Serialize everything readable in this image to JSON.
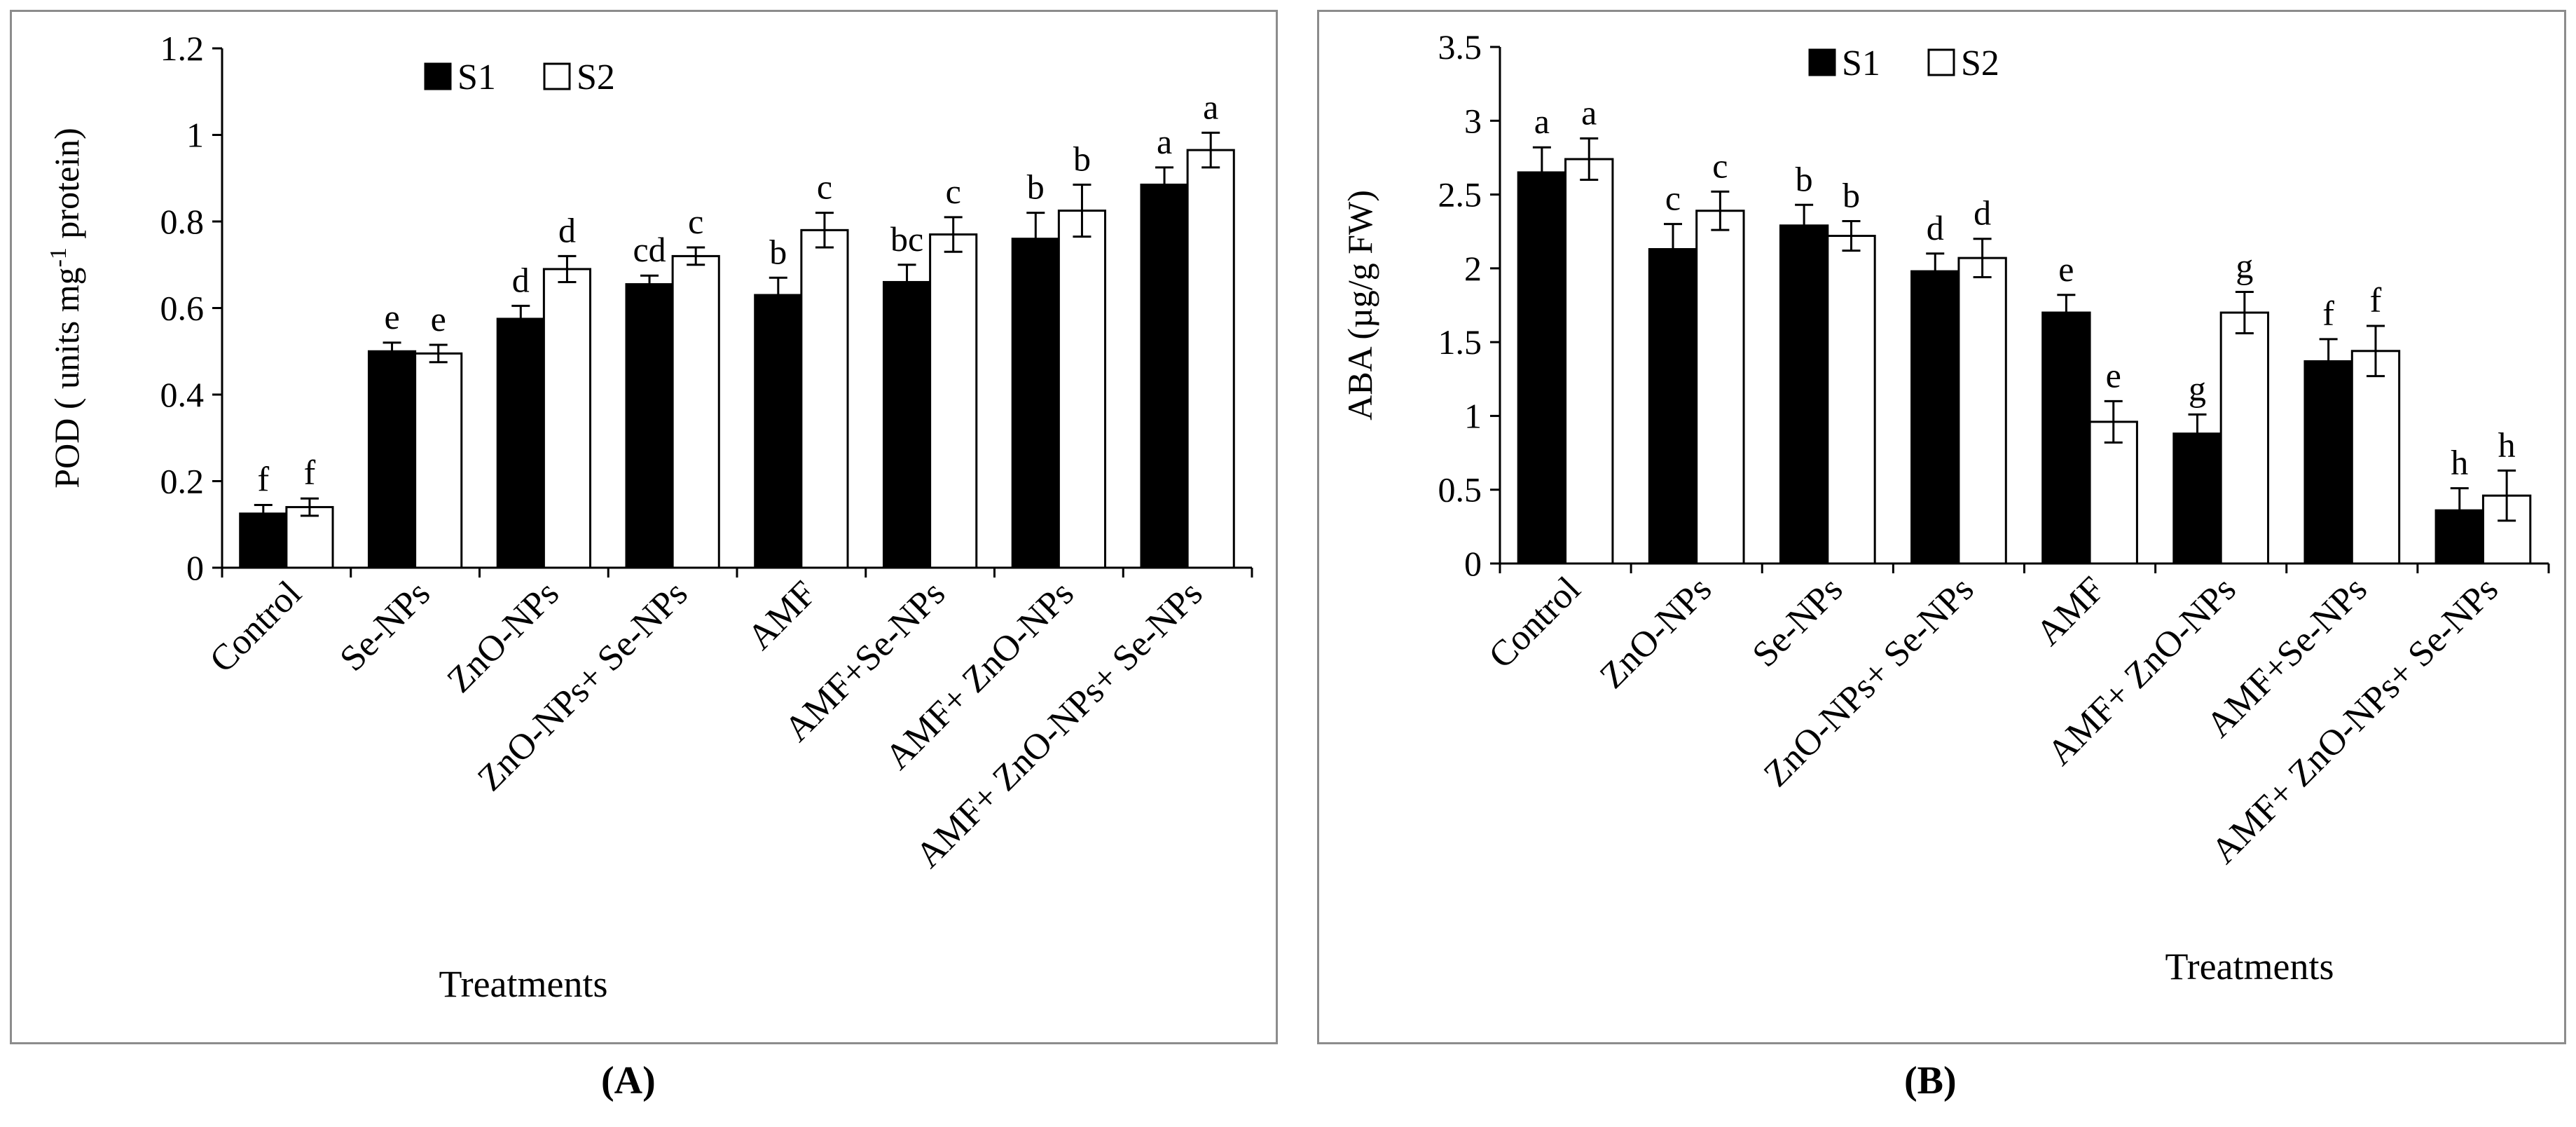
{
  "chart_data": [
    {
      "type": "bar",
      "panel": "A",
      "title": "",
      "xlabel": "Treatments",
      "ylabel_main": "POD ( units mg",
      "ylabel_sup": "-1",
      "ylabel_tail": " protein)",
      "ylim": [
        0,
        1.2
      ],
      "yticks": [
        "0",
        "0.2",
        "0.4",
        "0.6",
        "0.8",
        "1",
        "1.2"
      ],
      "ytick_values": [
        0,
        0.2,
        0.4,
        0.6,
        0.8,
        1.0,
        1.2
      ],
      "legend_position": "top-center",
      "categories": [
        "Control",
        "Se-NPs",
        "ZnO-NPs",
        "ZnO-NPs+ Se-NPs",
        "AMF",
        "AMF+Se-NPs",
        "AMF+ ZnO-NPs",
        "AMF+ ZnO-NPs+ Se-NPs"
      ],
      "series": [
        {
          "name": "S1",
          "fill": "#000000",
          "values": [
            0.125,
            0.5,
            0.575,
            0.655,
            0.63,
            0.66,
            0.76,
            0.885
          ],
          "errors": [
            0.02,
            0.02,
            0.03,
            0.02,
            0.04,
            0.04,
            0.06,
            0.04
          ],
          "letters": [
            "f",
            "e",
            "d",
            "cd",
            "b",
            "bc",
            "b",
            "a"
          ]
        },
        {
          "name": "S2",
          "fill": "#ffffff",
          "values": [
            0.14,
            0.495,
            0.69,
            0.72,
            0.78,
            0.77,
            0.825,
            0.965
          ],
          "errors": [
            0.02,
            0.02,
            0.03,
            0.02,
            0.04,
            0.04,
            0.06,
            0.04
          ],
          "letters": [
            "f",
            "e",
            "d",
            "c",
            "c",
            "c",
            "b",
            "a"
          ]
        }
      ]
    },
    {
      "type": "bar",
      "panel": "B",
      "title": "",
      "xlabel": "Treatments",
      "ylabel_main": "ABA (µg/g FW)",
      "ylabel_sup": "",
      "ylabel_tail": "",
      "ylim": [
        0,
        3.5
      ],
      "yticks": [
        "0",
        "0.5",
        "1",
        "1.5",
        "2",
        "2.5",
        "3",
        "3.5"
      ],
      "ytick_values": [
        0,
        0.5,
        1,
        1.5,
        2,
        2.5,
        3,
        3.5
      ],
      "legend_position": "top-center",
      "categories": [
        "Control",
        "ZnO-NPs",
        "Se-NPs",
        "ZnO-NPs+ Se-NPs",
        "AMF",
        "AMF+ ZnO-NPs",
        "AMF+Se-NPs",
        "AMF+ ZnO-NPs+ Se-NPs"
      ],
      "series": [
        {
          "name": "S1",
          "fill": "#000000",
          "values": [
            2.65,
            2.13,
            2.29,
            1.98,
            1.7,
            0.88,
            1.37,
            0.36
          ],
          "errors": [
            0.17,
            0.17,
            0.14,
            0.12,
            0.12,
            0.13,
            0.15,
            0.15
          ],
          "letters": [
            "a",
            "c",
            "b",
            "d",
            "e",
            "g",
            "f",
            "h"
          ]
        },
        {
          "name": "S2",
          "fill": "#ffffff",
          "values": [
            2.74,
            2.39,
            2.22,
            2.07,
            0.96,
            1.7,
            1.44,
            0.46
          ],
          "errors": [
            0.14,
            0.13,
            0.1,
            0.13,
            0.14,
            0.14,
            0.17,
            0.17
          ],
          "letters": [
            "a",
            "c",
            "b",
            "d",
            "e",
            "g",
            "f",
            "h"
          ]
        }
      ]
    }
  ],
  "captions": {
    "a": "A",
    "b": "B"
  }
}
